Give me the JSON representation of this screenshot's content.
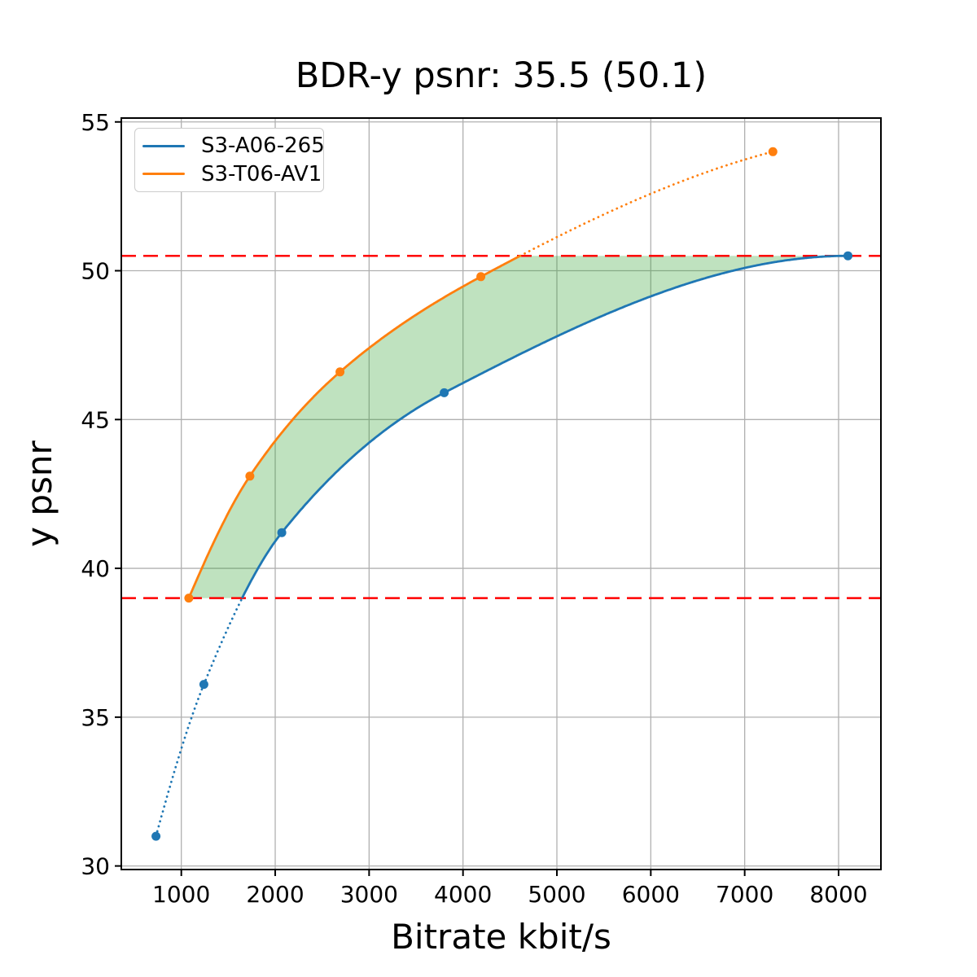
{
  "chart_data": {
    "type": "line",
    "title": "BDR-y psnr: 35.5 (50.1)",
    "xlabel": "Bitrate kbit/s",
    "ylabel": "y psnr",
    "xlim": [
      361,
      8451
    ],
    "ylim": [
      29.88,
      55.13
    ],
    "x_ticks": [
      1000,
      2000,
      3000,
      4000,
      5000,
      6000,
      7000,
      8000
    ],
    "y_ticks": [
      30,
      35,
      40,
      45,
      50,
      55
    ],
    "grid": true,
    "grid_color": "#b0b0b0",
    "legend_position": "upper left",
    "series": [
      {
        "name": "S3-A06-265",
        "color": "#1f77b4",
        "marker": "circle",
        "points": [
          [
            730,
            31.0
          ],
          [
            1240,
            36.1
          ],
          [
            2070,
            41.2
          ],
          [
            3800,
            45.9
          ],
          [
            8100,
            50.5
          ]
        ]
      },
      {
        "name": "S3-T06-AV1",
        "color": "#ff7f0e",
        "marker": "circle",
        "points": [
          [
            1080,
            39.0
          ],
          [
            1730,
            43.1
          ],
          [
            2690,
            46.6
          ],
          [
            4190,
            49.8
          ],
          [
            7300,
            54.0
          ]
        ]
      }
    ],
    "reference_lines": {
      "color": "#ff0000",
      "style": "dashed",
      "values": [
        39.0,
        50.5
      ]
    },
    "overlap_fill": {
      "color": "#2ca02c",
      "opacity": 0.3,
      "psnr_range": [
        39.0,
        50.5
      ]
    },
    "line_style_note": "curves are solid inside the psnr overlap range and dotted outside it"
  }
}
